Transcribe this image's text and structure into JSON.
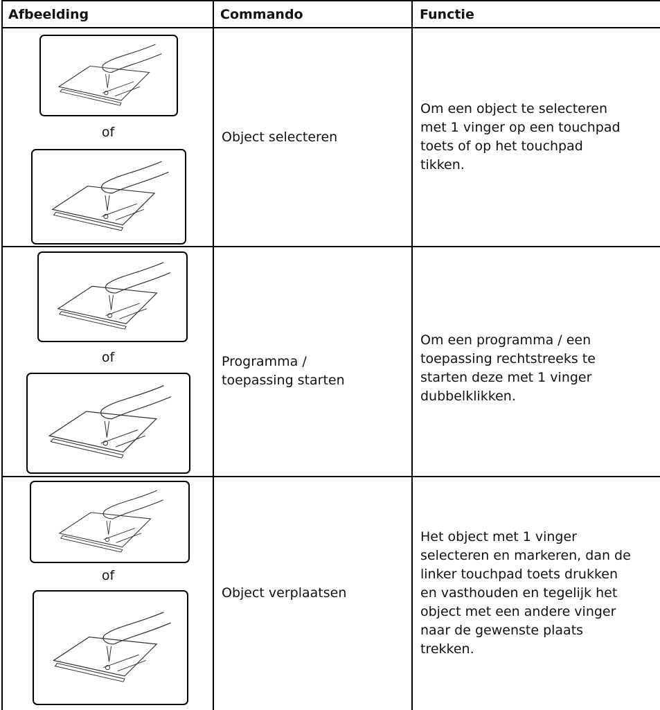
{
  "table": {
    "header": [
      "Afbeelding",
      "Commando",
      "Functie"
    ],
    "rows": [
      {
        "or": "of",
        "command": [
          "Object selecteren"
        ],
        "function": [
          "Om een object te selecteren",
          "met 1 vinger op een touchpad",
          "toets of op het touchpad",
          "tikken."
        ]
      },
      {
        "or": "of",
        "command": [
          "Programma /",
          "toepassing starten"
        ],
        "function": [
          "Om een programma / een",
          "toepassing rechtstreeks te",
          "starten deze met 1 vinger",
          "dubbelklikken."
        ]
      },
      {
        "or": "of",
        "command": [
          "Object verplaatsen"
        ],
        "function": [
          "Het object met 1 vinger",
          "selecteren en markeren, dan de",
          "linker touchpad toets drukken",
          "en vasthouden en tegelijk het",
          "object met een andere vinger",
          "naar de gewenste plaats",
          "trekken."
        ]
      }
    ]
  }
}
